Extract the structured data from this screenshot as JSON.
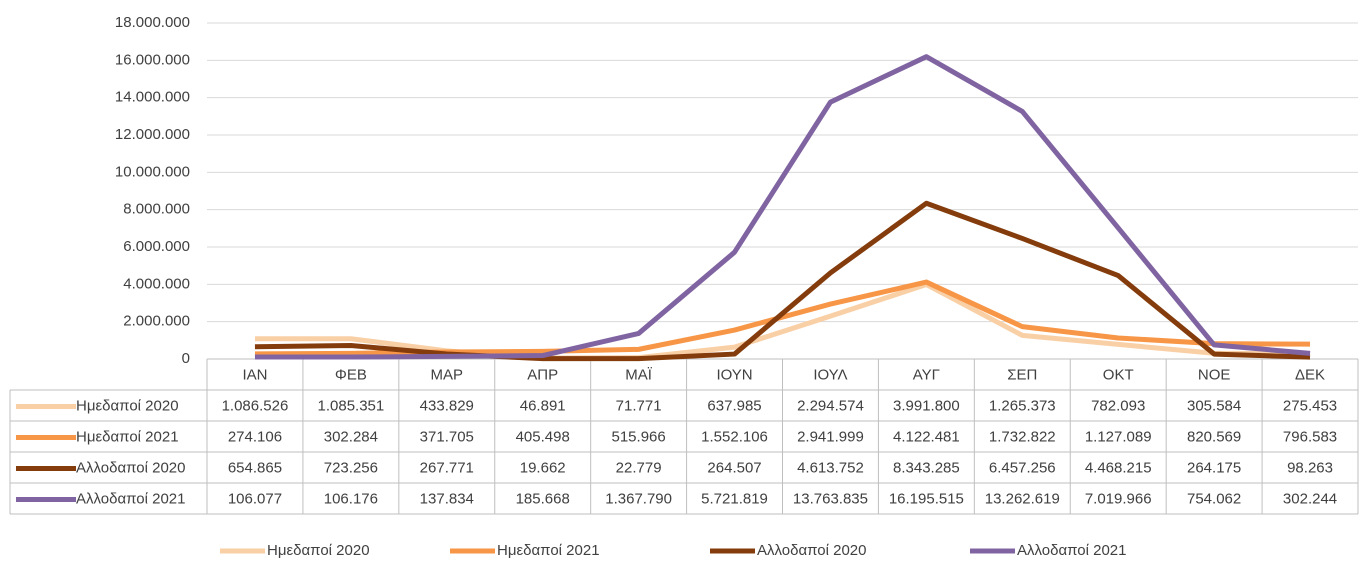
{
  "chart_data": {
    "type": "line",
    "categories": [
      "ΙΑΝ",
      "ΦΕΒ",
      "ΜΑΡ",
      "ΑΠΡ",
      "ΜΑΪ",
      "ΙΟΥΝ",
      "ΙΟΥΛ",
      "ΑΥΓ",
      "ΣΕΠ",
      "ΟΚΤ",
      "ΝΟΕ",
      "ΔΕΚ"
    ],
    "series": [
      {
        "name": "Ημεδαποί 2020",
        "color": "#f9cfa6",
        "values": [
          1086526,
          1085351,
          433829,
          46891,
          71771,
          637985,
          2294574,
          3991800,
          1265373,
          782093,
          305584,
          275453
        ],
        "value_labels": [
          "1.086.526",
          "1.085.351",
          "433.829",
          "46.891",
          "71.771",
          "637.985",
          "2.294.574",
          "3.991.800",
          "1.265.373",
          "782.093",
          "305.584",
          "275.453"
        ]
      },
      {
        "name": "Ημεδαποί 2021",
        "color": "#f79646",
        "values": [
          274106,
          302284,
          371705,
          405498,
          515966,
          1552106,
          2941999,
          4122481,
          1732822,
          1127089,
          820569,
          796583
        ],
        "value_labels": [
          "274.106",
          "302.284",
          "371.705",
          "405.498",
          "515.966",
          "1.552.106",
          "2.941.999",
          "4.122.481",
          "1.732.822",
          "1.127.089",
          "820.569",
          "796.583"
        ]
      },
      {
        "name": "Αλλοδαποί 2020",
        "color": "#843c0c",
        "values": [
          654865,
          723256,
          267771,
          19662,
          22779,
          264507,
          4613752,
          8343285,
          6457256,
          4468215,
          264175,
          98263
        ],
        "value_labels": [
          "654.865",
          "723.256",
          "267.771",
          "19.662",
          "22.779",
          "264.507",
          "4.613.752",
          "8.343.285",
          "6.457.256",
          "4.468.215",
          "264.175",
          "98.263"
        ]
      },
      {
        "name": "Αλλοδαποί 2021",
        "color": "#8064a2",
        "values": [
          106077,
          106176,
          137834,
          185668,
          1367790,
          5721819,
          13763835,
          16195515,
          13262619,
          7019966,
          754062,
          302244
        ],
        "value_labels": [
          "106.077",
          "106.176",
          "137.834",
          "185.668",
          "1.367.790",
          "5.721.819",
          "13.763.835",
          "16.195.515",
          "13.262.619",
          "7.019.966",
          "754.062",
          "302.244"
        ]
      }
    ],
    "ylim": [
      0,
      18000000
    ],
    "yticks": [
      0,
      {
        "value": 2000000,
        "label": "2.000.000"
      },
      {
        "value": 4000000,
        "label": "4.000.000"
      },
      {
        "value": 6000000,
        "label": "6.000.000"
      },
      {
        "value": 8000000,
        "label": "8.000.000"
      },
      {
        "value": 10000000,
        "label": "10.000.000"
      },
      {
        "value": 12000000,
        "label": "12.000.000"
      },
      {
        "value": 14000000,
        "label": "14.000.000"
      },
      {
        "value": 16000000,
        "label": "16.000.000"
      },
      {
        "value": 18000000,
        "label": "18.000.000"
      }
    ],
    "grid": true,
    "legend": "bottom"
  }
}
